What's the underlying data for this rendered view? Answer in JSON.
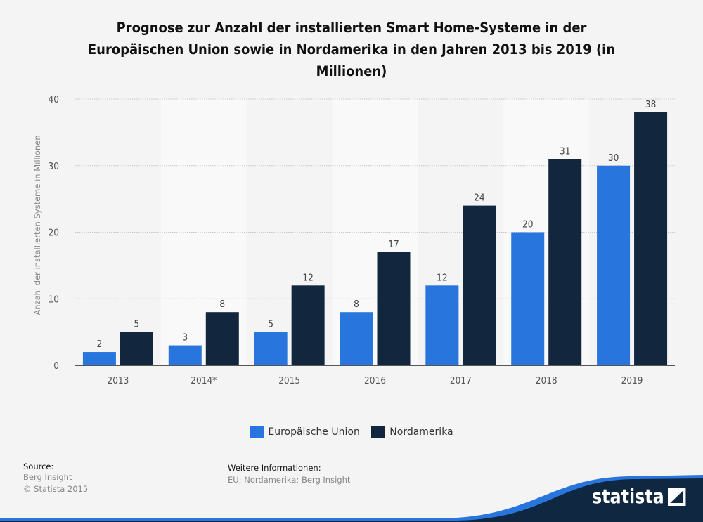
{
  "title": "Prognose zur Anzahl der installierten Smart Home-Systeme in der Europäischen Union sowie in Nordamerika in den Jahren 2013 bis 2019 (in Millionen)",
  "chart_data": {
    "type": "bar",
    "title": "Prognose zur Anzahl der installierten Smart Home-Systeme in der Europäischen Union sowie in Nordamerika in den Jahren 2013 bis 2019 (in Millionen)",
    "xlabel": "",
    "ylabel": "Anzahl der installierten Systeme in Millionen",
    "ylim": [
      0,
      40
    ],
    "yticks": [
      0,
      10,
      20,
      30,
      40
    ],
    "grid": true,
    "legend_position": "bottom",
    "categories": [
      "2013",
      "2014*",
      "2015",
      "2016",
      "2017",
      "2018",
      "2019"
    ],
    "series": [
      {
        "name": "Europäische Union",
        "color": "#2876dd",
        "values": [
          2,
          3,
          5,
          8,
          12,
          20,
          30
        ]
      },
      {
        "name": "Nordamerika",
        "color": "#12263d",
        "values": [
          5,
          8,
          12,
          17,
          24,
          31,
          38
        ]
      }
    ]
  },
  "footer": {
    "source_heading": "Source:",
    "source_lines": [
      "Berg Insight",
      "© Statista 2015"
    ],
    "info_heading": "Weitere Informationen:",
    "info_text": "EU; Nordamerika; Berg Insight",
    "logo_text": "statista"
  }
}
